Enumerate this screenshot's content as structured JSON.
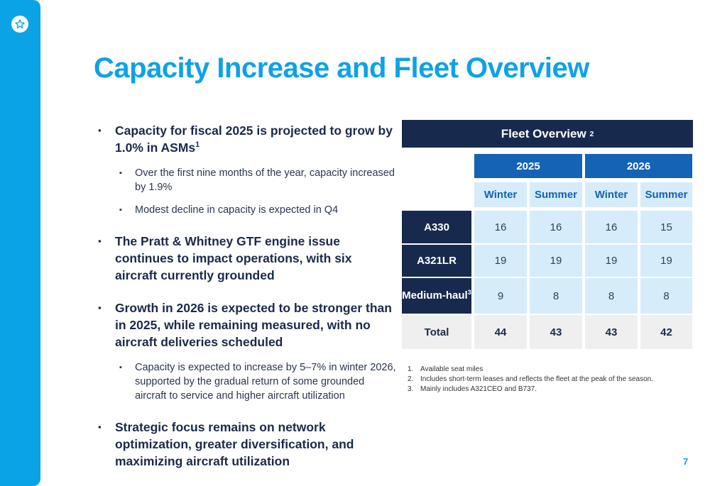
{
  "page_title": "Capacity Increase and Fleet Overview",
  "bullets": {
    "b1": "Capacity for fiscal 2025 is projected to grow by 1.0% in ASMs",
    "b1_sup": "1",
    "b1_sub1": "Over the first nine months of the year, capacity increased by 1.9%",
    "b1_sub2": "Modest decline in capacity is expected in Q4",
    "b2": "The Pratt & Whitney GTF engine issue continues to impact operations, with six aircraft currently grounded",
    "b3": "Growth in 2026 is expected to be stronger than in 2025, while remaining measured, with no aircraft deliveries scheduled",
    "b3_sub1": "Capacity is expected to increase by 5–7% in winter 2026, supported by the gradual return of some grounded aircraft to service and higher aircraft utilization",
    "b4": "Strategic focus remains on network optimization, greater diversification, and maximizing aircraft utilization"
  },
  "fleet": {
    "title": "Fleet Overview",
    "title_sup": "2",
    "years": [
      "2025",
      "2026"
    ],
    "seasons": [
      "Winter",
      "Summer",
      "Winter",
      "Summer"
    ],
    "rows": [
      {
        "label": "A330",
        "values": [
          "16",
          "16",
          "16",
          "15"
        ]
      },
      {
        "label": "A321LR",
        "values": [
          "19",
          "19",
          "19",
          "19"
        ]
      },
      {
        "label": "Medium-haul",
        "label_sup": "3",
        "values": [
          "9",
          "8",
          "8",
          "8"
        ]
      }
    ],
    "total": {
      "label": "Total",
      "values": [
        "44",
        "43",
        "43",
        "42"
      ]
    }
  },
  "footnotes": [
    {
      "num": "1.",
      "text": "Available seat miles"
    },
    {
      "num": "2.",
      "text": "Includes short-term leases and reflects the fleet at the peak of the season."
    },
    {
      "num": "3.",
      "text": "Mainly includes A321CEO and B737."
    }
  ],
  "page_number": "7",
  "colors": {
    "accent": "#0ea2e6",
    "navy": "#17294d",
    "blue": "#1463b4",
    "light": "#d6ecfa"
  },
  "icons": {
    "logo": "star-logo-icon"
  }
}
